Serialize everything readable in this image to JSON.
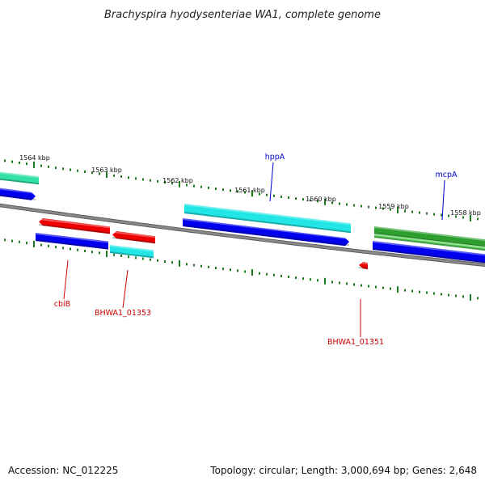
{
  "title": "Brachyspira hyodysenteriae WA1, complete genome",
  "footer": {
    "accession": "Accession: NC_012225",
    "summary": "Topology: circular; Length: 3,000,694 bp; Genes: 2,648"
  },
  "scale_labels": [
    "1564 kbp",
    "1563 kbp",
    "1562 kbp",
    "1561 kbp",
    "1560 kbp",
    "1559 kbp",
    "1558 kbp"
  ],
  "gene_labels": [
    {
      "text": "hppA",
      "color": "#0000cc"
    },
    {
      "text": "mcpA",
      "color": "#0000cc"
    },
    {
      "text": "cbiB",
      "color": "#cc0000"
    },
    {
      "text": "BHWA1_01353",
      "color": "#cc0000"
    },
    {
      "text": "BHWA1_01351",
      "color": "#cc0000"
    }
  ],
  "colors": {
    "backbone": "#8a8a8a",
    "tick": "#1e7a1e",
    "cds_blue": "#0000ee",
    "cds_cyan": "#22e6e6",
    "cds_green": "#2e9e2e",
    "cds_teal": "#33e0a6",
    "cds_red": "#ee0000",
    "label_line_blue": "#0000cc",
    "label_line_red": "#cc0000"
  }
}
